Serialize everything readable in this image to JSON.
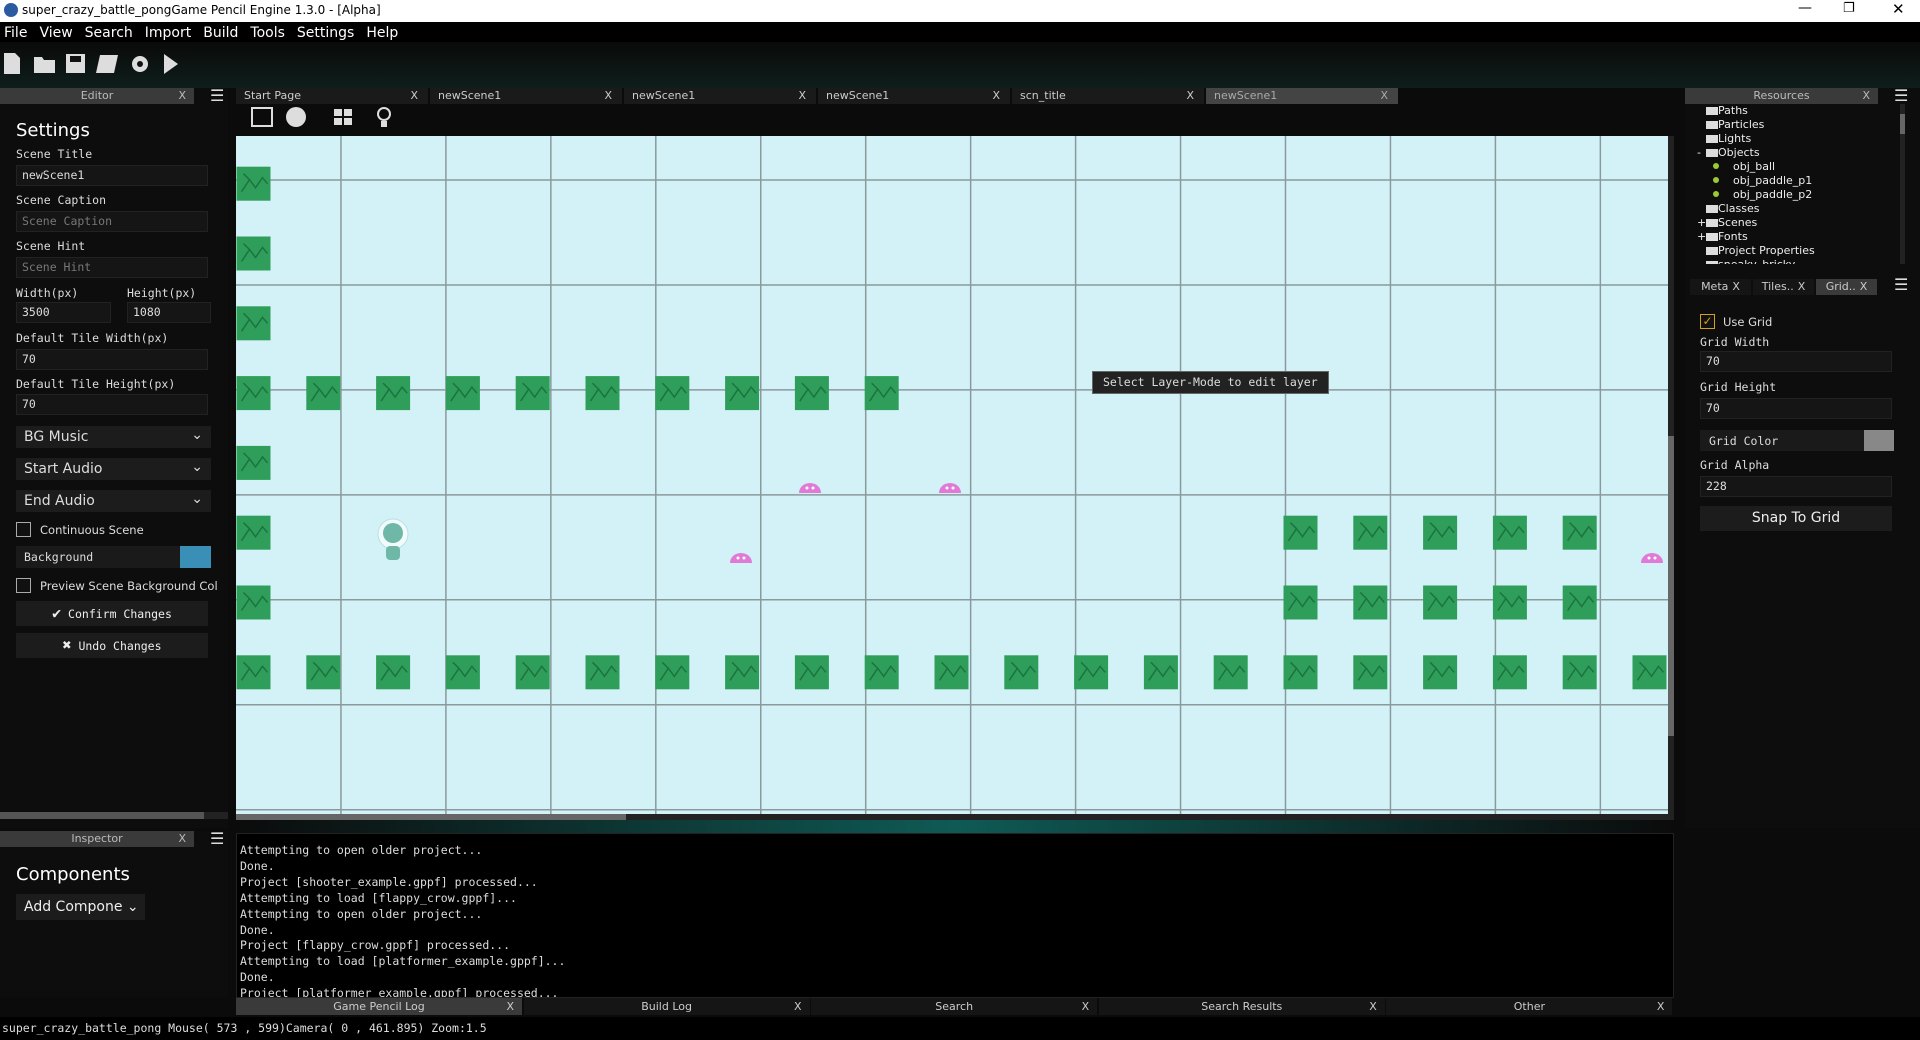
{
  "window": {
    "title": "super_crazy_battle_pongGame Pencil Engine  1.3.0 - [Alpha]"
  },
  "menu": [
    "File",
    "View",
    "Search",
    "Import",
    "Build",
    "Tools",
    "Settings",
    "Help"
  ],
  "close": "X",
  "editor": {
    "title": "Editor",
    "heading": "Settings",
    "scene_title_label": "Scene Title",
    "scene_title": "newScene1",
    "scene_caption_label": "Scene Caption",
    "scene_caption_placeholder": "Scene Caption",
    "scene_hint_label": "Scene Hint",
    "scene_hint_placeholder": "Scene Hint",
    "width_label": "Width(px)",
    "width": 3500,
    "height_label": "Height(px)",
    "height": 1080,
    "tile_width_label": "Default Tile Width(px)",
    "tile_width": 70,
    "tile_height_label": "Default Tile Height(px)",
    "tile_height": 70,
    "dropdowns": [
      "BG Music",
      "Start Audio",
      "End Audio"
    ],
    "continuous": "Continuous Scene",
    "background": "Background",
    "preview": "Preview Scene Background Col",
    "confirm": "Confirm Changes",
    "undo": "Undo Changes"
  },
  "inspector": {
    "title": "Inspector",
    "heading": "Components",
    "add": "Add Compone"
  },
  "tabs": [
    "Start Page",
    "newScene1",
    "newScene1",
    "newScene1",
    "scn_title",
    "newScene1"
  ],
  "canvas": {
    "tooltip": "Select Layer-Mode to edit layer"
  },
  "resources": {
    "title": "Resources",
    "tree": [
      {
        "toggle": null,
        "label": "Paths"
      },
      {
        "toggle": null,
        "label": "Particles"
      },
      {
        "toggle": null,
        "label": "Lights"
      },
      {
        "toggle": "-",
        "label": "Objects"
      },
      {
        "toggle": null,
        "label": "obj_ball"
      },
      {
        "toggle": null,
        "label": "obj_paddle_p1"
      },
      {
        "toggle": null,
        "label": "obj_paddle_p2"
      },
      {
        "toggle": null,
        "label": "Classes"
      },
      {
        "toggle": "+",
        "label": "Scenes"
      },
      {
        "toggle": "+",
        "label": "Fonts"
      },
      {
        "toggle": null,
        "label": "Project Properties"
      },
      {
        "toggle": null,
        "label": "sneaky_bricky"
      }
    ]
  },
  "side_tabs": [
    "Meta",
    "Tiles..",
    "Grid.."
  ],
  "grid": {
    "use_grid": "Use Grid",
    "width_label": "Grid Width",
    "width": 70,
    "height_label": "Grid Height",
    "height": 70,
    "color_label": "Grid Color",
    "alpha_label": "Grid Alpha",
    "alpha": 228,
    "snap": "Snap To Grid"
  },
  "log": [
    "Attempting to open older project...",
    "Done.",
    "Project [shooter_example.gppf] processed...",
    "Attempting to load [flappy_crow.gppf]...",
    "Attempting to open older project...",
    "Done.",
    "Project [flappy_crow.gppf] processed...",
    "Attempting to load [platformer_example.gppf]...",
    "Done.",
    "Project [platformer_example.gppf] processed..."
  ],
  "bottom_tabs": [
    "Game Pencil Log",
    "Build Log",
    "Search",
    "Search Results",
    "Other"
  ],
  "status": "super_crazy_battle_pong Mouse( 573 , 599)Camera( 0 , 461.895) Zoom:1.5"
}
